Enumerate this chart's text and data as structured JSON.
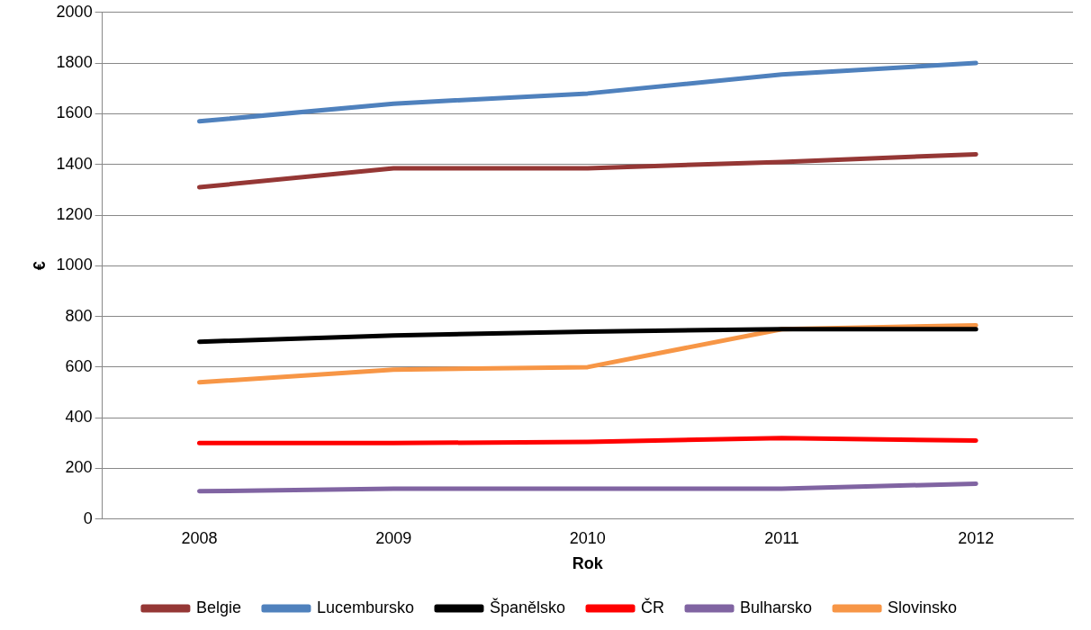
{
  "chart_data": {
    "type": "line",
    "xlabel": "Rok",
    "ylabel": "€",
    "categories": [
      "2008",
      "2009",
      "2010",
      "2011",
      "2012"
    ],
    "series": [
      {
        "name": "Belgie",
        "color": "#953735",
        "values": [
          1310,
          1385,
          1385,
          1410,
          1440
        ]
      },
      {
        "name": "Lucembursko",
        "color": "#4f81bd",
        "values": [
          1570,
          1640,
          1680,
          1755,
          1800
        ]
      },
      {
        "name": "Španělsko",
        "color": "#000000",
        "values": [
          700,
          725,
          740,
          750,
          750
        ]
      },
      {
        "name": "ČR",
        "color": "#ff0000",
        "values": [
          300,
          300,
          305,
          320,
          310
        ]
      },
      {
        "name": "Bulharsko",
        "color": "#8064a2",
        "values": [
          110,
          120,
          120,
          120,
          140
        ]
      },
      {
        "name": "Slovinsko",
        "color": "#f79646",
        "values": [
          540,
          590,
          600,
          750,
          765
        ]
      }
    ],
    "ylim": [
      0,
      2000
    ],
    "yticks": [
      0,
      200,
      400,
      600,
      800,
      1000,
      1200,
      1400,
      1600,
      1800,
      2000
    ],
    "grid": "y",
    "legend": "bottom",
    "marker": "none",
    "line_style": "solid"
  }
}
